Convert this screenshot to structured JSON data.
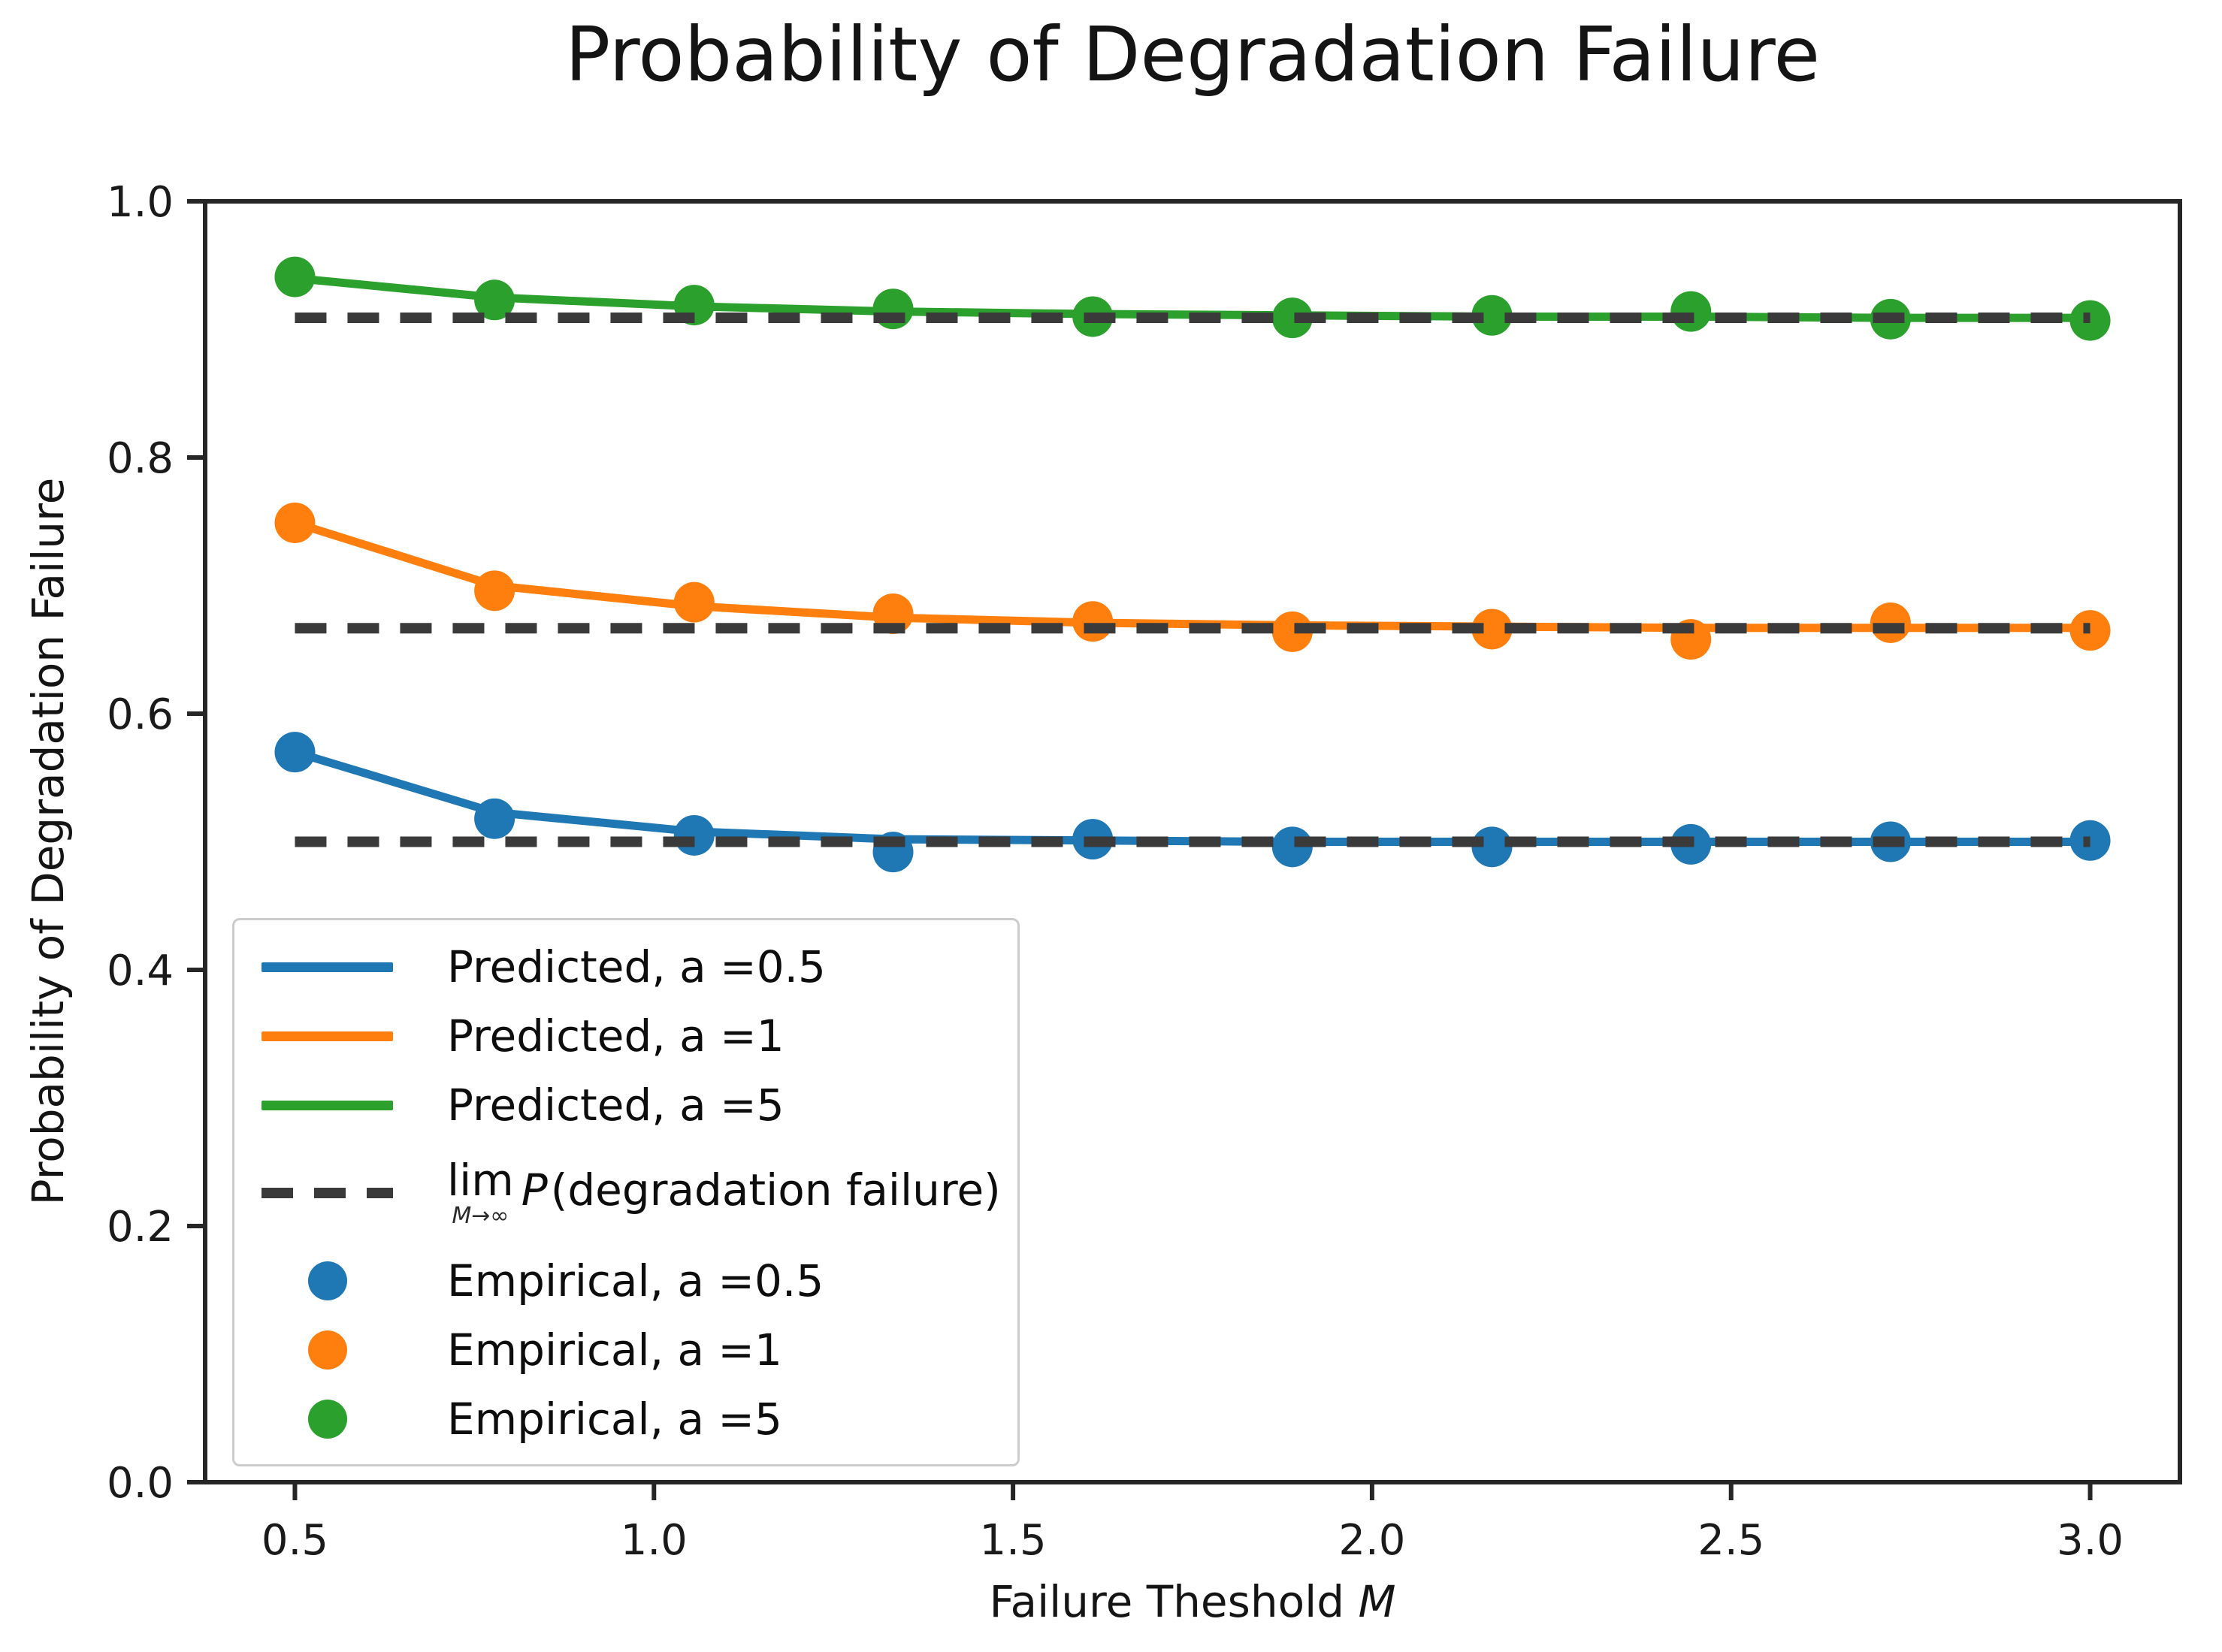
{
  "figure": {
    "title": "Probability of Degradation Failure",
    "xlabel_prefix": "Failure Theshold ",
    "xlabel_math": "M",
    "ylabel": "Probability of Degradation Failure"
  },
  "colors": {
    "blue": "#1f77b4",
    "orange": "#ff7f0e",
    "green": "#2ca02c",
    "asymptote_dash": "#3a3a3a",
    "axis": "#262626",
    "legend_border": "#cccccc"
  },
  "legend": {
    "items": [
      {
        "type": "line",
        "color": "#1f77b4",
        "label": "Predicted, a =0.5"
      },
      {
        "type": "line",
        "color": "#ff7f0e",
        "label": "Predicted, a =1"
      },
      {
        "type": "line",
        "color": "#2ca02c",
        "label": "Predicted, a =5"
      },
      {
        "type": "dashed",
        "color": "#3a3a3a",
        "lim": "lim",
        "lim_sub": "M→∞",
        "label_math": "P",
        "label_rest": "(degradation failure)"
      },
      {
        "type": "dot",
        "color": "#1f77b4",
        "label": "Empirical, a =0.5"
      },
      {
        "type": "dot",
        "color": "#ff7f0e",
        "label": "Empirical, a =1"
      },
      {
        "type": "dot",
        "color": "#2ca02c",
        "label": "Empirical, a =5"
      }
    ]
  },
  "chart_data": {
    "type": "line",
    "title": "Probability of Degradation Failure",
    "xlabel": "Failure Theshold M",
    "ylabel": "Probability of Degradation Failure",
    "xlim": [
      0.375,
      3.125
    ],
    "ylim": [
      0,
      1
    ],
    "grid": false,
    "legend_position": "lower left",
    "x_ticks": [
      0.5,
      1.0,
      1.5,
      2.0,
      2.5,
      3.0
    ],
    "x_tick_labels": [
      "0.5",
      "1.0",
      "1.5",
      "2.0",
      "2.5",
      "3.0"
    ],
    "y_ticks": [
      0.0,
      0.2,
      0.4,
      0.6,
      0.8,
      1.0
    ],
    "y_tick_labels": [
      "0.0",
      "0.2",
      "0.4",
      "0.6",
      "0.8",
      "1.0"
    ],
    "x": [
      0.5,
      0.778,
      1.056,
      1.333,
      1.611,
      1.889,
      2.167,
      2.444,
      2.722,
      3.0
    ],
    "series": [
      {
        "name": "Predicted, a =0.5",
        "style": "line",
        "color": "#1f77b4",
        "values": [
          0.57,
          0.523,
          0.508,
          0.502,
          0.501,
          0.5,
          0.5,
          0.5,
          0.5,
          0.5
        ]
      },
      {
        "name": "Predicted, a =1",
        "style": "line",
        "color": "#ff7f0e",
        "values": [
          0.749,
          0.7,
          0.684,
          0.675,
          0.671,
          0.669,
          0.668,
          0.667,
          0.667,
          0.667
        ]
      },
      {
        "name": "Predicted, a =5",
        "style": "line",
        "color": "#2ca02c",
        "values": [
          0.94,
          0.925,
          0.918,
          0.914,
          0.912,
          0.911,
          0.91,
          0.91,
          0.909,
          0.909
        ]
      },
      {
        "name": "Empirical, a =0.5",
        "style": "scatter",
        "color": "#1f77b4",
        "values": [
          0.57,
          0.518,
          0.505,
          0.492,
          0.502,
          0.496,
          0.496,
          0.498,
          0.5,
          0.501
        ]
      },
      {
        "name": "Empirical, a =1",
        "style": "scatter",
        "color": "#ff7f0e",
        "values": [
          0.749,
          0.696,
          0.687,
          0.678,
          0.672,
          0.664,
          0.666,
          0.658,
          0.671,
          0.665
        ]
      },
      {
        "name": "Empirical, a =5",
        "style": "scatter",
        "color": "#2ca02c",
        "values": [
          0.941,
          0.923,
          0.919,
          0.916,
          0.91,
          0.909,
          0.911,
          0.914,
          0.908,
          0.907
        ]
      }
    ],
    "asymptotes": {
      "label": "lim M→∞ P(degradation failure)",
      "color": "#3a3a3a",
      "x_span": [
        0.5,
        3.0
      ],
      "y_values": [
        0.5,
        0.6667,
        0.9091
      ]
    }
  }
}
